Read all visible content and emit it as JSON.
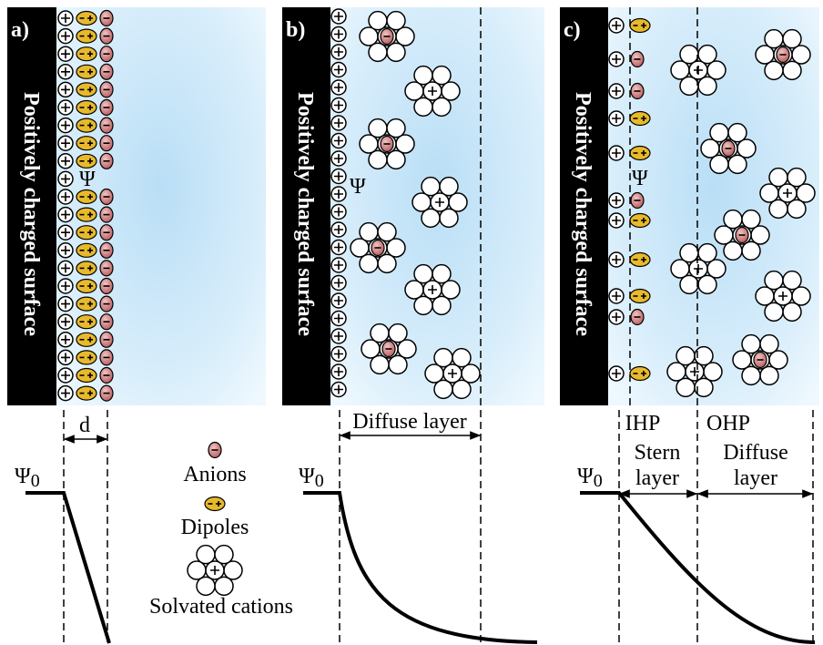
{
  "panels": [
    {
      "label": "a)",
      "surface": "Positively charged surface",
      "psi": "Ψ",
      "psi0": {
        "main": "Ψ",
        "sub": "0"
      },
      "dimension": "d"
    },
    {
      "label": "b)",
      "surface": "Positively charged surface",
      "psi": "Ψ",
      "psi0": {
        "main": "Ψ",
        "sub": "0"
      },
      "layer": "Diffuse layer"
    },
    {
      "label": "c)",
      "surface": "Positively charged surface",
      "psi": "Ψ",
      "psi0": {
        "main": "Ψ",
        "sub": "0"
      },
      "planes": [
        "IHP",
        "OHP"
      ],
      "layers": [
        [
          "Stern",
          "layer"
        ],
        [
          "Diffuse",
          "layer"
        ]
      ]
    }
  ],
  "legend": [
    "Anions",
    "Dipoles",
    "Solvated cations"
  ]
}
